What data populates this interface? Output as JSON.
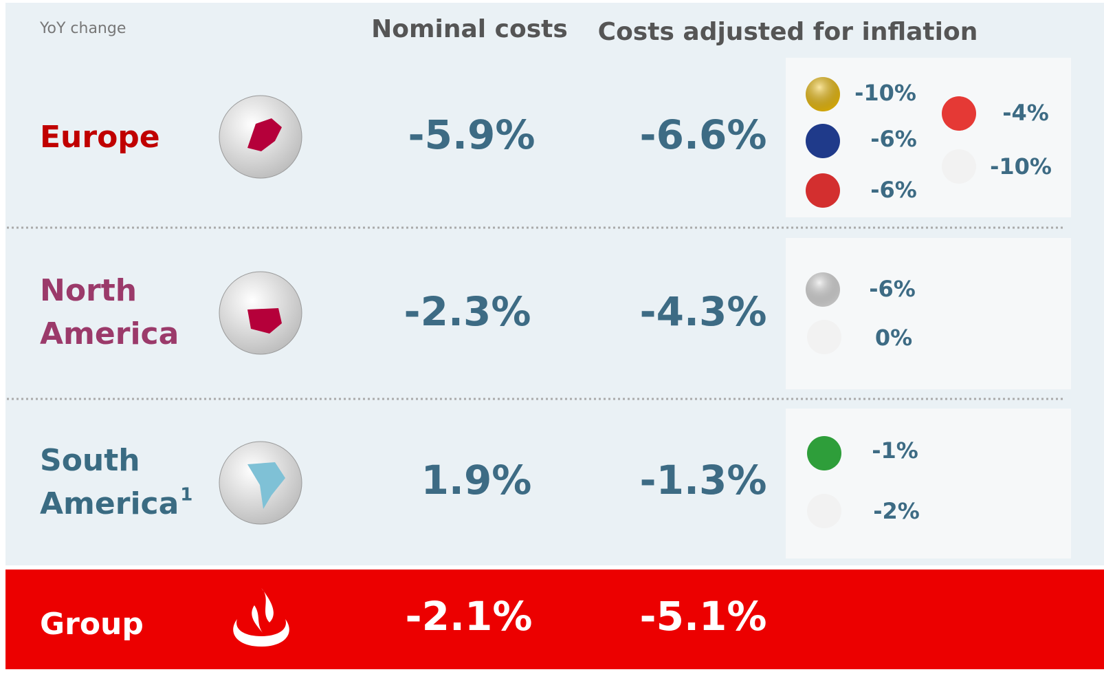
{
  "header": {
    "note": "YoY change",
    "columns": [
      "Nominal costs",
      "Costs adjusted for inflation"
    ]
  },
  "rows": [
    {
      "region": "Europe",
      "nominal": "-5.9%",
      "adjusted": "-6.6%",
      "countries": [
        "-10%",
        "-6%",
        "-6%",
        "-4%",
        "-10%"
      ]
    },
    {
      "region": [
        "North",
        "America"
      ],
      "nominal": "-2.3%",
      "adjusted": "-4.3%",
      "countries": [
        "-6%",
        "0%"
      ]
    },
    {
      "region": [
        "South",
        "America"
      ],
      "footnote": "1",
      "nominal": "1.9%",
      "adjusted": "-1.3%",
      "countries": [
        "-1%",
        "-2%"
      ]
    }
  ],
  "group": {
    "label": "Group",
    "nominal": "-2.1%",
    "adjusted": "-5.1%"
  }
}
